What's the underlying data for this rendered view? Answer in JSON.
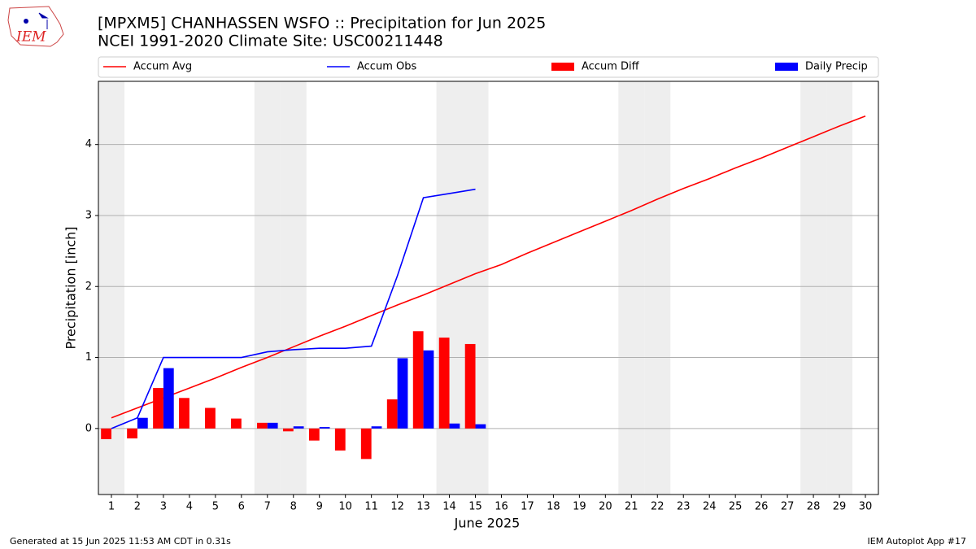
{
  "chart_data": {
    "type": "combo",
    "title": "[MPXM5] CHANHASSEN WSFO :: Precipitation for Jun 2025",
    "subtitle": "NCEI 1991-2020 Climate Site: USC00211448",
    "logo_text": "IEM",
    "xlabel": "June 2025",
    "ylabel": "Precipitation [inch]",
    "footer_left": "Generated at 15 Jun 2025 11:53 AM CDT in 0.31s",
    "footer_right": "IEM Autoplot App #17",
    "x": [
      1,
      2,
      3,
      4,
      5,
      6,
      7,
      8,
      9,
      10,
      11,
      12,
      13,
      14,
      15,
      16,
      17,
      18,
      19,
      20,
      21,
      22,
      23,
      24,
      25,
      26,
      27,
      28,
      29,
      30
    ],
    "xlim": [
      0.5,
      30.5
    ],
    "xticks": [
      1,
      2,
      3,
      4,
      5,
      6,
      7,
      8,
      9,
      10,
      11,
      12,
      13,
      14,
      15,
      16,
      17,
      18,
      19,
      20,
      21,
      22,
      23,
      24,
      25,
      26,
      27,
      28,
      29,
      30
    ],
    "ylim": [
      -0.93,
      4.89
    ],
    "yticks": [
      0,
      1,
      2,
      3,
      4
    ],
    "grid": true,
    "shaded_days": [
      1,
      7,
      8,
      14,
      15,
      21,
      22,
      28,
      29
    ],
    "shade_color": "#eeeeee",
    "series": [
      {
        "name": "Accum Avg",
        "color": "#ff0000",
        "style": "line",
        "values": [
          0.15,
          0.29,
          0.43,
          0.57,
          0.71,
          0.86,
          1.0,
          1.15,
          1.3,
          1.44,
          1.59,
          1.74,
          1.88,
          2.03,
          2.18,
          2.31,
          2.47,
          2.62,
          2.77,
          2.92,
          3.07,
          3.23,
          3.38,
          3.52,
          3.67,
          3.81,
          3.96,
          4.11,
          4.26,
          4.4
        ]
      },
      {
        "name": "Accum Obs",
        "color": "#0000ff",
        "style": "line",
        "values": [
          0,
          0.15,
          1.0,
          1.0,
          1.0,
          1.0,
          1.08,
          1.11,
          1.13,
          1.13,
          1.16,
          2.15,
          3.25,
          3.31,
          3.37,
          null,
          null,
          null,
          null,
          null,
          null,
          null,
          null,
          null,
          null,
          null,
          null,
          null,
          null,
          null
        ]
      },
      {
        "name": "Accum Diff",
        "color": "#ff0000",
        "style": "bar-left",
        "values": [
          -0.15,
          -0.14,
          0.57,
          0.43,
          0.29,
          0.14,
          0.08,
          -0.04,
          -0.17,
          -0.31,
          -0.43,
          0.41,
          1.37,
          1.28,
          1.19,
          null,
          null,
          null,
          null,
          null,
          null,
          null,
          null,
          null,
          null,
          null,
          null,
          null,
          null,
          null
        ]
      },
      {
        "name": "Daily Precip",
        "color": "#0000ff",
        "style": "bar-right",
        "values": [
          0,
          0.15,
          0.85,
          0,
          0,
          0,
          0.08,
          0.03,
          0.02,
          0,
          0.03,
          0.99,
          1.1,
          0.07,
          0.06,
          null,
          null,
          null,
          null,
          null,
          null,
          null,
          null,
          null,
          null,
          null,
          null,
          null,
          null,
          null
        ]
      }
    ]
  }
}
